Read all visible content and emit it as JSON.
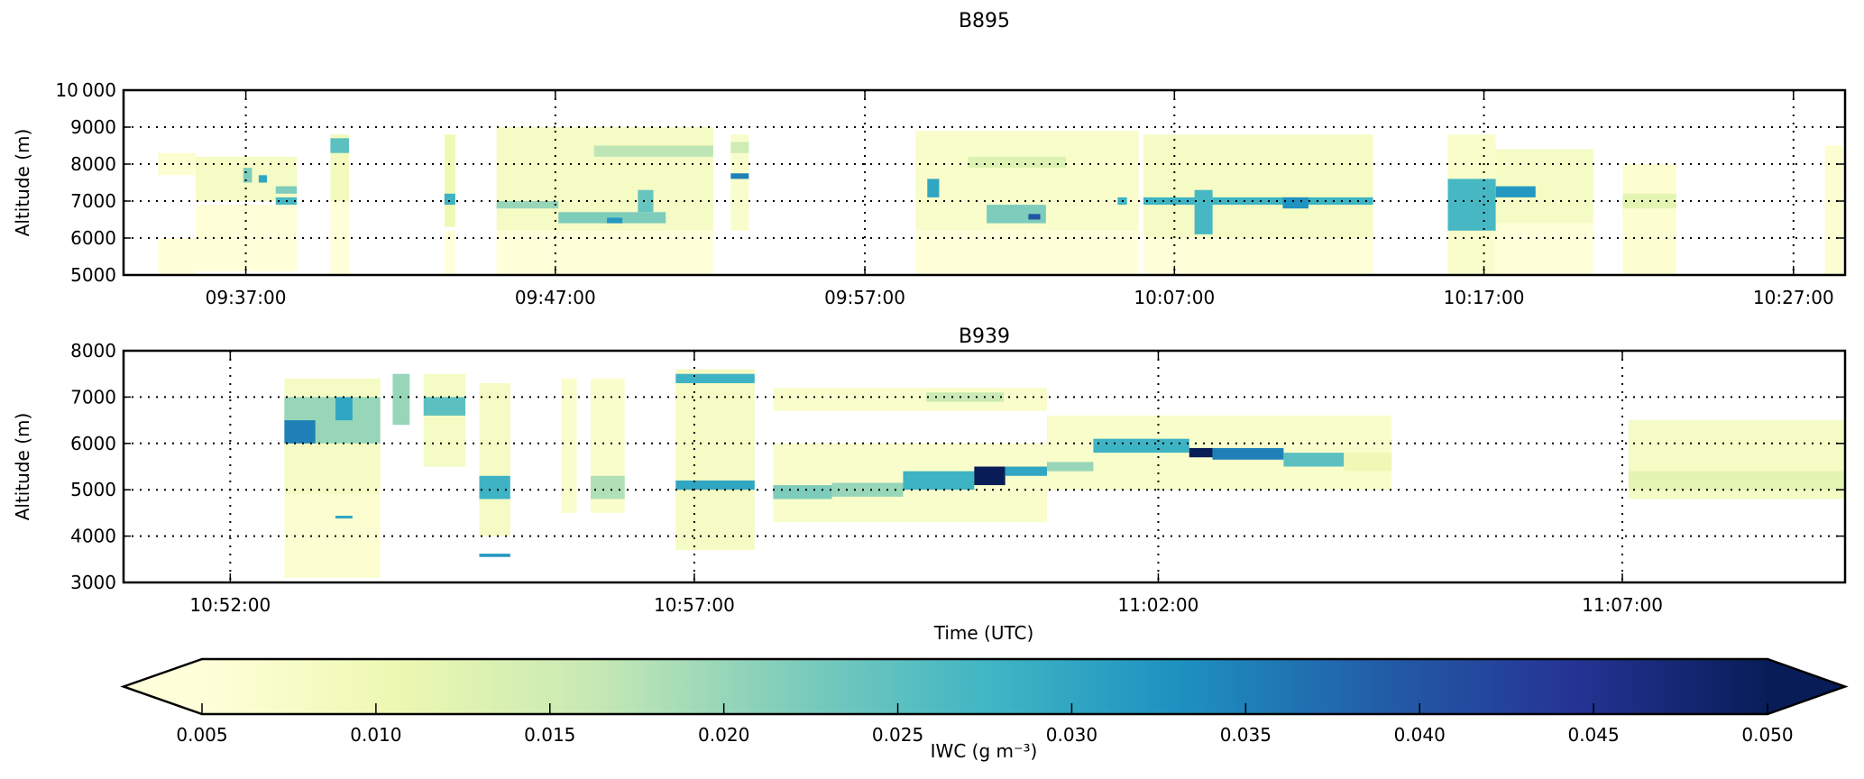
{
  "chart_data": {
    "type": "heatmap",
    "colormap": "YlGnBu",
    "colormap_stops": [
      "#ffffd9",
      "#edf8b1",
      "#c7e9b4",
      "#7fcdbb",
      "#41b6c4",
      "#1d91c0",
      "#225ea8",
      "#253494",
      "#081d58"
    ],
    "colorbar": {
      "label": "IWC (g m⁻³)",
      "vmin": 0.005,
      "vmax": 0.05,
      "extend": "both",
      "ticks": [
        "0.005",
        "0.010",
        "0.015",
        "0.020",
        "0.025",
        "0.030",
        "0.035",
        "0.040",
        "0.045",
        "0.050"
      ]
    },
    "xlabel": "Time (UTC)",
    "grid": true,
    "panels": [
      {
        "title": "B895",
        "ylabel": "Altitude (m)",
        "xlim": [
          "09:33:03",
          "10:28:40"
        ],
        "ylim": [
          5000,
          10000
        ],
        "yticks": [
          5000,
          6000,
          7000,
          8000,
          9000,
          10000
        ],
        "ytick_labels": [
          "5000",
          "6000",
          "7000",
          "8000",
          "9000",
          "10 000"
        ],
        "xticks": [
          "09:37:00",
          "09:47:00",
          "09:57:00",
          "10:07:00",
          "10:17:00",
          "10:27:00"
        ],
        "cells": [
          [
            "09:34:10",
            "09:35:23",
            7700,
            8300,
            0.006
          ],
          [
            "09:34:10",
            "09:35:23",
            5000,
            6000,
            0.005
          ],
          [
            "09:35:23",
            "09:38:39",
            7000,
            8200,
            0.008
          ],
          [
            "09:35:23",
            "09:38:39",
            5100,
            6900,
            0.005
          ],
          [
            "09:36:55",
            "09:37:12",
            7500,
            7900,
            0.022
          ],
          [
            "09:37:25",
            "09:37:41",
            7500,
            7700,
            0.03
          ],
          [
            "09:37:58",
            "09:38:39",
            7200,
            7400,
            0.022
          ],
          [
            "09:37:58",
            "09:38:39",
            6900,
            7100,
            0.027
          ],
          [
            "09:39:44",
            "09:40:20",
            7000,
            8800,
            0.009
          ],
          [
            "09:39:44",
            "09:40:20",
            5000,
            7000,
            0.005
          ],
          [
            "09:39:44",
            "09:40:20",
            8300,
            8700,
            0.025
          ],
          [
            "09:43:25",
            "09:43:46",
            6300,
            8800,
            0.01
          ],
          [
            "09:43:25",
            "09:43:46",
            5000,
            6200,
            0.005
          ],
          [
            "09:43:25",
            "09:43:46",
            6900,
            7200,
            0.028
          ],
          [
            "09:45:06",
            "09:52:06",
            6200,
            9000,
            0.008
          ],
          [
            "09:45:06",
            "09:52:06",
            5000,
            6200,
            0.005
          ],
          [
            "09:45:06",
            "09:47:06",
            6800,
            7000,
            0.02
          ],
          [
            "09:47:06",
            "09:50:34",
            6400,
            6700,
            0.022
          ],
          [
            "09:48:40",
            "09:49:10",
            6400,
            6550,
            0.032
          ],
          [
            "09:49:40",
            "09:50:10",
            6700,
            7300,
            0.024
          ],
          [
            "09:48:15",
            "09:52:06",
            8200,
            8500,
            0.017
          ],
          [
            "09:52:40",
            "09:53:15",
            6200,
            8800,
            0.007
          ],
          [
            "09:52:40",
            "09:53:15",
            7600,
            7750,
            0.035
          ],
          [
            "09:52:40",
            "09:53:15",
            8300,
            8600,
            0.015
          ],
          [
            "09:58:38",
            "10:05:51",
            6200,
            8900,
            0.007
          ],
          [
            "09:58:38",
            "10:05:51",
            5000,
            6200,
            0.005
          ],
          [
            "09:59:01",
            "09:59:24",
            7100,
            7600,
            0.03
          ],
          [
            "10:00:20",
            "10:03:30",
            7900,
            8200,
            0.013
          ],
          [
            "10:00:56",
            "10:02:51",
            6400,
            6900,
            0.022
          ],
          [
            "10:02:17",
            "10:02:40",
            6500,
            6650,
            0.04
          ],
          [
            "10:05:10",
            "10:05:28",
            6900,
            7100,
            0.028
          ],
          [
            "10:06:00",
            "10:13:25",
            6000,
            8800,
            0.008
          ],
          [
            "10:06:00",
            "10:13:25",
            5000,
            6000,
            0.005
          ],
          [
            "10:06:00",
            "10:13:25",
            6900,
            7100,
            0.028
          ],
          [
            "10:07:39",
            "10:08:14",
            6100,
            7300,
            0.027
          ],
          [
            "10:10:30",
            "10:11:20",
            6800,
            7100,
            0.033
          ],
          [
            "10:15:50",
            "10:17:23",
            5000,
            8800,
            0.007
          ],
          [
            "10:15:50",
            "10:17:23",
            6200,
            7600,
            0.027
          ],
          [
            "10:17:23",
            "10:20:32",
            6400,
            8400,
            0.008
          ],
          [
            "10:17:23",
            "10:20:32",
            5000,
            6400,
            0.005
          ],
          [
            "10:17:23",
            "10:18:40",
            7100,
            7400,
            0.032
          ],
          [
            "10:21:29",
            "10:23:13",
            5000,
            8000,
            0.006
          ],
          [
            "10:21:29",
            "10:23:13",
            6800,
            7200,
            0.012
          ],
          [
            "10:28:01",
            "10:28:36",
            5000,
            8500,
            0.006
          ]
        ]
      },
      {
        "title": "B939",
        "ylabel": "Altitude (m)",
        "xlim": [
          "10:50:51",
          "11:09:24"
        ],
        "ylim": [
          3000,
          8000
        ],
        "yticks": [
          3000,
          4000,
          5000,
          6000,
          7000,
          8000
        ],
        "ytick_labels": [
          "3000",
          "4000",
          "5000",
          "6000",
          "7000",
          "8000"
        ],
        "xticks": [
          "10:52:00",
          "10:57:00",
          "11:02:00",
          "11:07:00"
        ],
        "cells": [
          [
            "10:52:35",
            "10:53:37",
            4900,
            7400,
            0.008
          ],
          [
            "10:52:35",
            "10:53:37",
            3100,
            4900,
            0.006
          ],
          [
            "10:52:35",
            "10:53:37",
            6000,
            7000,
            0.02
          ],
          [
            "10:52:35",
            "10:52:55",
            6000,
            6500,
            0.035
          ],
          [
            "10:53:08",
            "10:53:19",
            6500,
            7000,
            0.03
          ],
          [
            "10:53:08",
            "10:53:19",
            4380,
            4440,
            0.03
          ],
          [
            "10:53:45",
            "10:53:56",
            6400,
            7500,
            0.02
          ],
          [
            "10:54:05",
            "10:54:32",
            5500,
            7500,
            0.008
          ],
          [
            "10:54:05",
            "10:54:32",
            6600,
            7000,
            0.025
          ],
          [
            "10:54:41",
            "10:55:01",
            4000,
            7300,
            0.008
          ],
          [
            "10:54:41",
            "10:55:01",
            4800,
            5300,
            0.028
          ],
          [
            "10:54:41",
            "10:55:01",
            3550,
            3620,
            0.032
          ],
          [
            "10:55:34",
            "10:55:44",
            4500,
            7400,
            0.007
          ],
          [
            "10:55:53",
            "10:56:15",
            4500,
            7400,
            0.007
          ],
          [
            "10:55:53",
            "10:56:15",
            4800,
            5300,
            0.018
          ],
          [
            "10:56:48",
            "10:57:39",
            3700,
            7600,
            0.008
          ],
          [
            "10:56:48",
            "10:57:39",
            7300,
            7500,
            0.028
          ],
          [
            "10:56:48",
            "10:57:39",
            5000,
            5200,
            0.03
          ],
          [
            "10:57:51",
            "11:00:48",
            4300,
            6000,
            0.007
          ],
          [
            "10:57:51",
            "11:00:48",
            6700,
            7200,
            0.007
          ],
          [
            "10:59:30",
            "11:00:20",
            6900,
            7100,
            0.016
          ],
          [
            "11:00:48",
            "11:04:31",
            5000,
            6600,
            0.007
          ],
          [
            "10:57:51",
            "10:58:29",
            4800,
            5100,
            0.022
          ],
          [
            "10:58:29",
            "10:59:15",
            4850,
            5150,
            0.02
          ],
          [
            "10:59:15",
            "11:00:01",
            5000,
            5400,
            0.028
          ],
          [
            "11:00:01",
            "11:00:21",
            5100,
            5500,
            0.05
          ],
          [
            "11:00:21",
            "11:00:48",
            5300,
            5500,
            0.03
          ],
          [
            "11:00:48",
            "11:01:18",
            5400,
            5600,
            0.02
          ],
          [
            "11:01:18",
            "11:02:20",
            5800,
            6100,
            0.028
          ],
          [
            "11:02:20",
            "11:02:35",
            5700,
            5900,
            0.05
          ],
          [
            "11:02:35",
            "11:03:21",
            5650,
            5900,
            0.035
          ],
          [
            "11:03:21",
            "11:04:00",
            5500,
            5800,
            0.025
          ],
          [
            "11:04:00",
            "11:04:31",
            5400,
            5800,
            0.01
          ],
          [
            "11:07:04",
            "11:09:24",
            4800,
            6500,
            0.008
          ],
          [
            "11:07:04",
            "11:09:24",
            5000,
            5400,
            0.012
          ]
        ]
      }
    ]
  }
}
